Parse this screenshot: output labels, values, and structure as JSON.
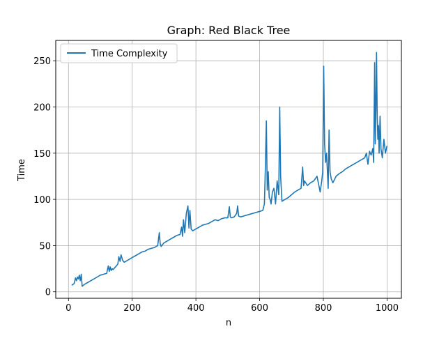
{
  "chart_data": {
    "type": "line",
    "title": "Graph: Red Black Tree",
    "xlabel": "n",
    "ylabel": "Time",
    "xlim": [
      -40,
      1045
    ],
    "ylim": [
      -7,
      272
    ],
    "xticks": [
      0,
      200,
      400,
      600,
      800,
      1000
    ],
    "yticks": [
      0,
      50,
      100,
      150,
      200,
      250
    ],
    "grid": true,
    "legend_position": "upper-left",
    "series": [
      {
        "name": "Time Complexity",
        "color": "#1f77b4",
        "x": [
          10,
          18,
          22,
          25,
          28,
          31,
          34,
          37,
          40,
          43,
          50,
          60,
          70,
          80,
          90,
          100,
          110,
          120,
          125,
          128,
          131,
          134,
          137,
          140,
          145,
          150,
          155,
          158,
          162,
          165,
          170,
          175,
          180,
          190,
          200,
          210,
          220,
          230,
          240,
          250,
          260,
          270,
          280,
          285,
          288,
          291,
          295,
          300,
          310,
          320,
          330,
          340,
          350,
          355,
          358,
          361,
          365,
          370,
          375,
          378,
          381,
          385,
          390,
          400,
          410,
          420,
          430,
          440,
          450,
          460,
          470,
          480,
          490,
          500,
          505,
          508,
          511,
          520,
          528,
          531,
          534,
          540,
          550,
          560,
          570,
          580,
          590,
          600,
          610,
          615,
          618,
          621,
          624,
          627,
          630,
          633,
          636,
          640,
          645,
          650,
          655,
          660,
          663,
          666,
          670,
          680,
          690,
          700,
          710,
          720,
          730,
          735,
          738,
          741,
          750,
          760,
          770,
          780,
          790,
          795,
          798,
          801,
          804,
          807,
          810,
          815,
          818,
          821,
          825,
          830,
          840,
          850,
          860,
          870,
          880,
          890,
          900,
          910,
          920,
          930,
          935,
          940,
          945,
          950,
          955,
          958,
          961,
          963,
          965,
          967,
          969,
          971,
          973,
          975,
          978,
          981,
          985,
          990,
          995,
          1000
        ],
        "y": [
          7,
          9,
          15,
          12,
          16,
          14,
          18,
          12,
          19,
          6,
          8,
          10,
          12,
          14,
          16,
          18,
          19,
          20,
          28,
          22,
          27,
          23,
          25,
          24,
          26,
          28,
          30,
          38,
          33,
          40,
          34,
          32,
          33,
          35,
          37,
          39,
          41,
          43,
          44,
          46,
          47,
          48,
          50,
          64,
          52,
          49,
          51,
          53,
          55,
          57,
          59,
          61,
          62,
          70,
          60,
          78,
          64,
          85,
          93,
          69,
          88,
          68,
          66,
          68,
          70,
          72,
          73,
          74,
          76,
          78,
          77,
          79,
          80,
          80,
          92,
          81,
          80,
          81,
          85,
          93,
          82,
          81,
          82,
          83,
          84,
          85,
          86,
          87,
          88,
          95,
          135,
          185,
          110,
          130,
          102,
          100,
          95,
          108,
          112,
          95,
          120,
          105,
          200,
          125,
          98,
          100,
          102,
          105,
          108,
          110,
          112,
          135,
          115,
          120,
          115,
          118,
          120,
          125,
          108,
          120,
          130,
          244,
          160,
          140,
          150,
          112,
          175,
          130,
          122,
          118,
          125,
          128,
          130,
          133,
          135,
          137,
          139,
          141,
          143,
          145,
          150,
          138,
          152,
          148,
          155,
          140,
          248,
          160,
          200,
          259,
          190,
          165,
          180,
          150,
          190,
          155,
          145,
          165,
          150,
          158
        ]
      }
    ]
  }
}
